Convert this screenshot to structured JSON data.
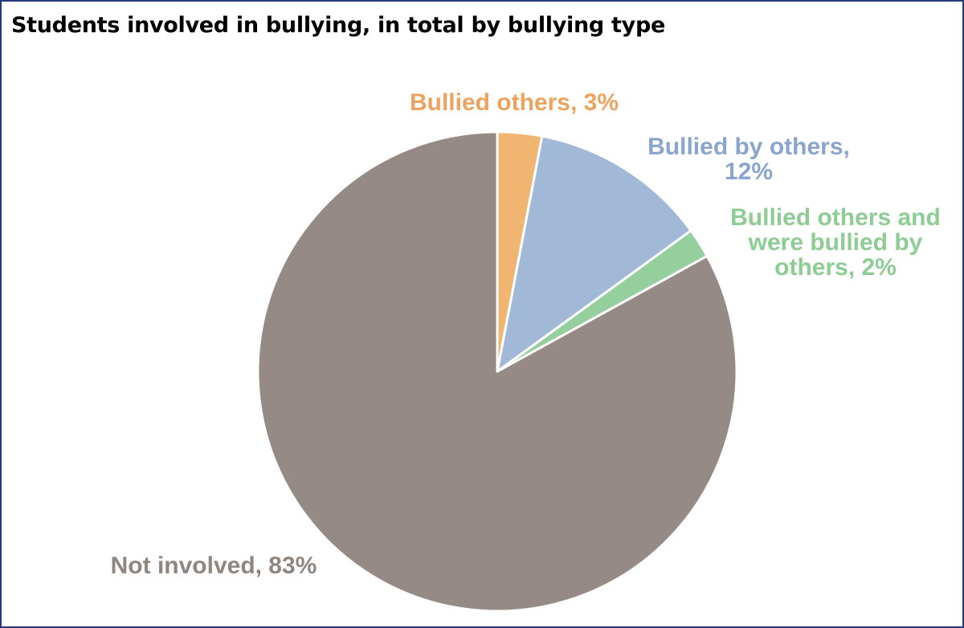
{
  "chart_data": {
    "type": "pie",
    "title": "Students involved in bullying, in total by bullying type",
    "slices": [
      {
        "label_lines": [
          "Bullied others, 3%"
        ],
        "category": "Bullied others",
        "value": 3,
        "color": "#f0b571",
        "label_color": "#eba35f"
      },
      {
        "label_lines": [
          "Bullied by others,",
          "12%"
        ],
        "category": "Bullied by others",
        "value": 12,
        "color": "#a1b8d6",
        "label_color": "#8aa5cd"
      },
      {
        "label_lines": [
          "Bullied others and",
          "were bullied by",
          "others, 2%"
        ],
        "category": "Bullied others and were bullied by others",
        "value": 2,
        "color": "#94cf9d",
        "label_color": "#8dcc93"
      },
      {
        "label_lines": [
          "Not involved, 83%"
        ],
        "category": "Not involved",
        "value": 83,
        "color": "#958a85",
        "label_color": "#8f8682"
      }
    ],
    "start_angle": "12 o'clock",
    "direction": "clockwise",
    "legend": "none"
  }
}
